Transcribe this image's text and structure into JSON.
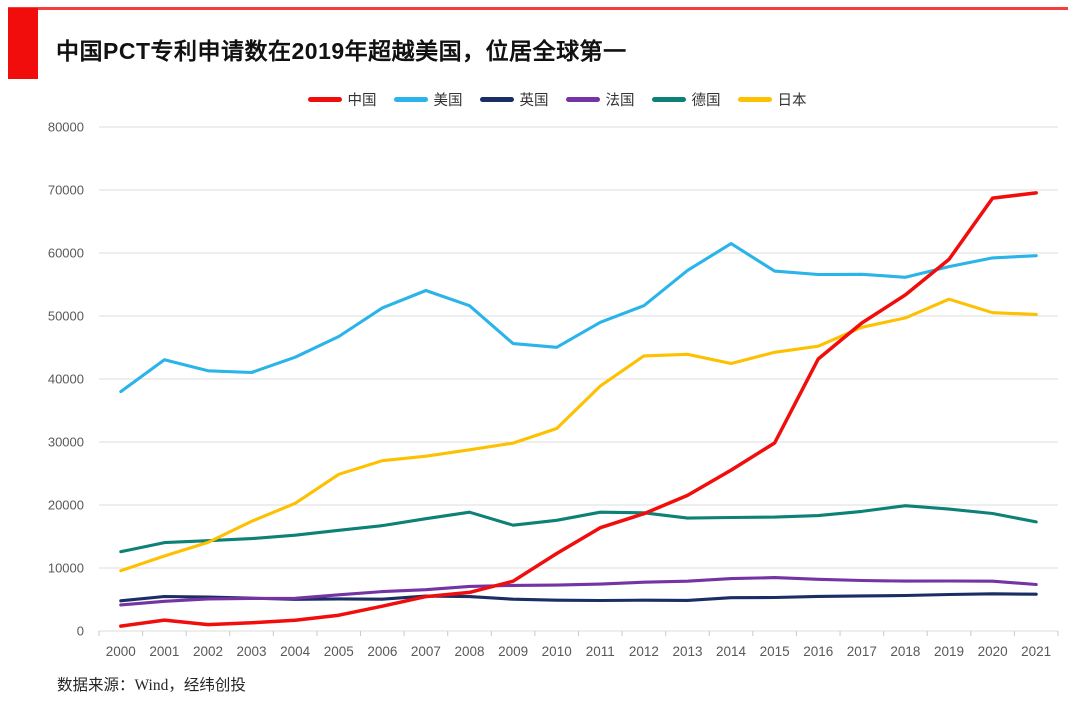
{
  "style": {
    "accent_color": "#f20d0d",
    "grid_color": "#dedede",
    "tick_color": "#c9c9c9",
    "axis_text_color": "#595959",
    "title_color": "#111111",
    "footer_color": "#262626"
  },
  "header": {
    "title": "中国PCT专利申请数在2019年超越美国，位居全球第一"
  },
  "footer": {
    "source": "数据来源：Wind，经纬创投"
  },
  "chart_data": {
    "type": "line",
    "title": "中国PCT专利申请数在2019年超越美国，位居全球第一",
    "legend_position": "top",
    "grid": true,
    "xlabel": "",
    "ylabel": "",
    "ylim": [
      0,
      80000
    ],
    "ytick_step": 10000,
    "yticks": [
      "0",
      "10000",
      "20000",
      "30000",
      "40000",
      "50000",
      "60000",
      "70000",
      "80000"
    ],
    "categories": [
      "2000",
      "2001",
      "2002",
      "2003",
      "2004",
      "2005",
      "2006",
      "2007",
      "2008",
      "2009",
      "2010",
      "2011",
      "2012",
      "2013",
      "2014",
      "2015",
      "2016",
      "2017",
      "2018",
      "2019",
      "2020",
      "2021"
    ],
    "series": [
      {
        "name": "中国",
        "color": "#f20d0d",
        "values": [
          781,
          1731,
          1018,
          1295,
          1706,
          2503,
          3942,
          5455,
          6120,
          7900,
          12296,
          16402,
          18617,
          21516,
          25539,
          29846,
          43168,
          48882,
          53345,
          58990,
          68720,
          69540
        ]
      },
      {
        "name": "美国",
        "color": "#2ab4ea",
        "values": [
          38007,
          43055,
          41296,
          41028,
          43464,
          46742,
          51280,
          54043,
          51642,
          45618,
          45029,
          48996,
          51642,
          57239,
          61492,
          57123,
          56595,
          56624,
          56142,
          57840,
          59230,
          59570
        ]
      },
      {
        "name": "英国",
        "color": "#1b2e63",
        "values": [
          4795,
          5482,
          5376,
          5206,
          5027,
          5097,
          5045,
          5542,
          5467,
          5044,
          4891,
          4844,
          4895,
          4865,
          5288,
          5313,
          5496,
          5567,
          5641,
          5786,
          5912,
          5841
        ]
      },
      {
        "name": "法国",
        "color": "#7434a4",
        "values": [
          4138,
          4707,
          5089,
          5171,
          5184,
          5742,
          6256,
          6560,
          7072,
          7237,
          7288,
          7438,
          7739,
          7899,
          8319,
          8476,
          8208,
          8012,
          7914,
          7934,
          7904,
          7380
        ]
      },
      {
        "name": "德国",
        "color": "#0e8177",
        "values": [
          12582,
          14031,
          14326,
          14662,
          15214,
          15985,
          16736,
          17821,
          18855,
          16797,
          17568,
          18851,
          18764,
          17927,
          18008,
          18072,
          18315,
          18982,
          19883,
          19353,
          18643,
          17322
        ]
      },
      {
        "name": "日本",
        "color": "#fdc101",
        "values": [
          9567,
          11904,
          14063,
          17414,
          20264,
          24869,
          27025,
          27743,
          28760,
          29827,
          32150,
          38888,
          43660,
          43918,
          42459,
          44235,
          45209,
          48208,
          49702,
          52660,
          50520,
          50260
        ]
      }
    ]
  }
}
